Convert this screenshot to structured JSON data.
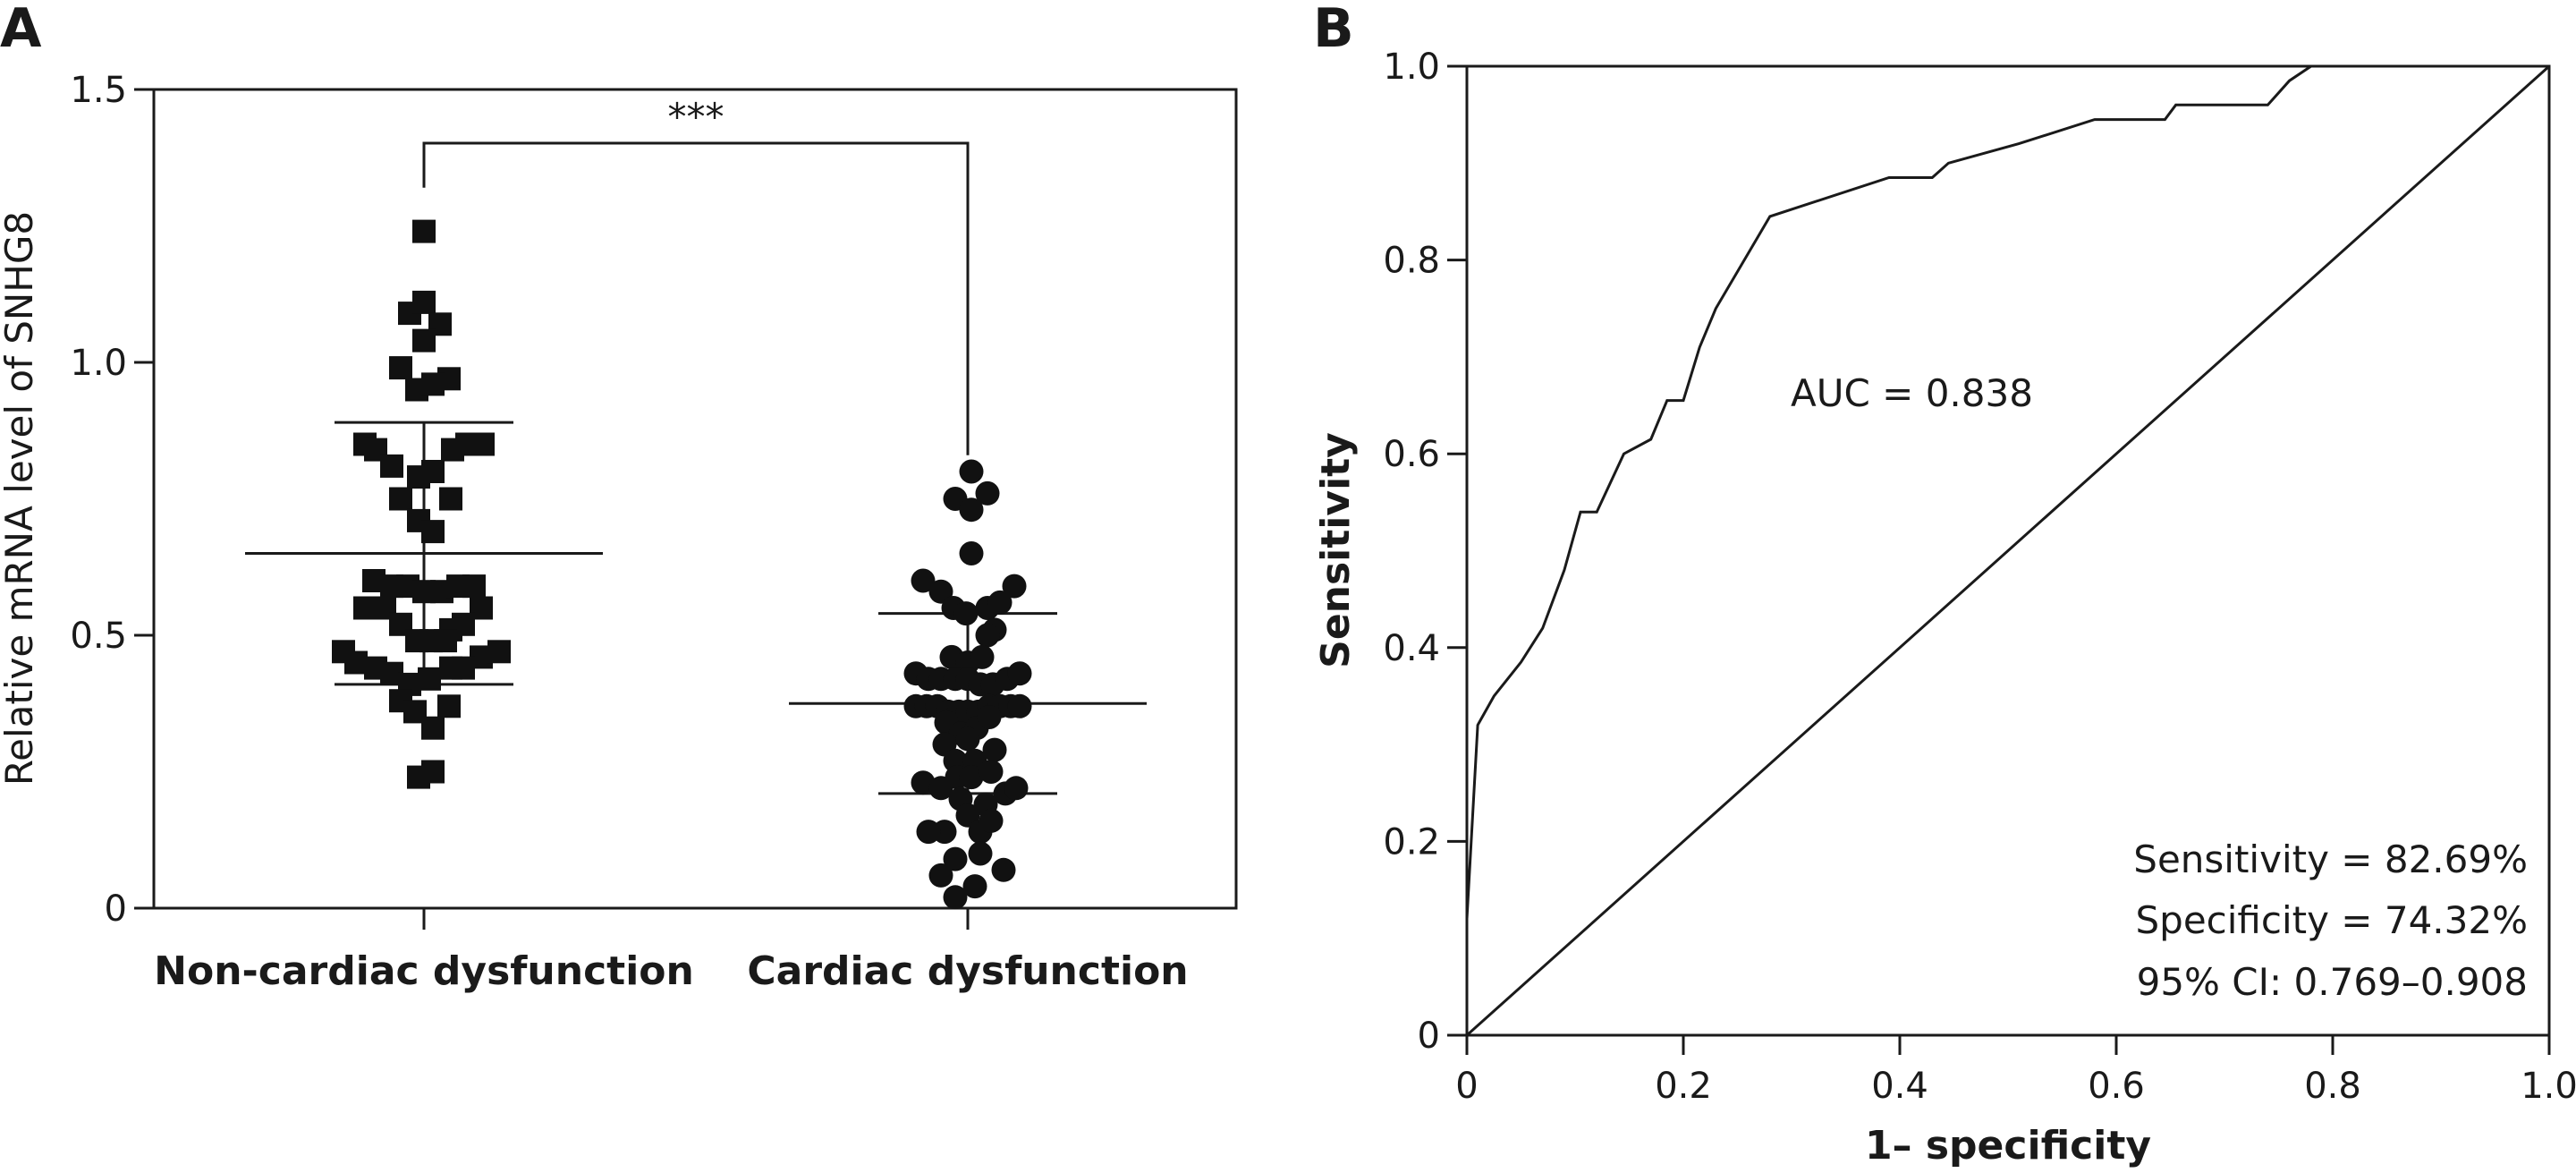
{
  "chart_data": [
    {
      "type": "scatter",
      "panel_label": "A",
      "ylabel": "Relative mRNA level of SNHG8",
      "ylim": [
        0,
        1.5
      ],
      "yticks": [
        0,
        0.5,
        1.0,
        1.5
      ],
      "ytick_labels": [
        "0",
        "0.5",
        "1.0",
        "1.5"
      ],
      "categories": [
        "Non-cardiac dysfunction",
        "Cardiac dysfunction"
      ],
      "significance": "***",
      "series": [
        {
          "marker": "square",
          "mean": 0.65,
          "sd_upper": 0.89,
          "sd_lower": 0.41,
          "points": [
            {
              "dx": 0.0,
              "y": 1.24
            },
            {
              "dx": -0.08,
              "y": 1.09
            },
            {
              "dx": 0.0,
              "y": 1.11
            },
            {
              "dx": 0.09,
              "y": 1.07
            },
            {
              "dx": 0.0,
              "y": 1.04
            },
            {
              "dx": -0.13,
              "y": 0.99
            },
            {
              "dx": 0.14,
              "y": 0.97
            },
            {
              "dx": -0.04,
              "y": 0.95
            },
            {
              "dx": 0.05,
              "y": 0.96
            },
            {
              "dx": -0.33,
              "y": 0.85
            },
            {
              "dx": -0.27,
              "y": 0.84
            },
            {
              "dx": 0.16,
              "y": 0.84
            },
            {
              "dx": 0.24,
              "y": 0.85
            },
            {
              "dx": 0.33,
              "y": 0.85
            },
            {
              "dx": -0.18,
              "y": 0.81
            },
            {
              "dx": -0.03,
              "y": 0.79
            },
            {
              "dx": 0.05,
              "y": 0.8
            },
            {
              "dx": -0.13,
              "y": 0.75
            },
            {
              "dx": 0.15,
              "y": 0.75
            },
            {
              "dx": -0.03,
              "y": 0.71
            },
            {
              "dx": 0.05,
              "y": 0.69
            },
            {
              "dx": -0.28,
              "y": 0.6
            },
            {
              "dx": -0.18,
              "y": 0.59
            },
            {
              "dx": -0.09,
              "y": 0.59
            },
            {
              "dx": 0.0,
              "y": 0.58
            },
            {
              "dx": 0.1,
              "y": 0.58
            },
            {
              "dx": 0.19,
              "y": 0.59
            },
            {
              "dx": 0.28,
              "y": 0.59
            },
            {
              "dx": -0.33,
              "y": 0.55
            },
            {
              "dx": -0.22,
              "y": 0.55
            },
            {
              "dx": 0.32,
              "y": 0.55
            },
            {
              "dx": -0.13,
              "y": 0.52
            },
            {
              "dx": 0.22,
              "y": 0.52
            },
            {
              "dx": 0.15,
              "y": 0.51
            },
            {
              "dx": -0.04,
              "y": 0.49
            },
            {
              "dx": 0.04,
              "y": 0.49
            },
            {
              "dx": 0.12,
              "y": 0.49
            },
            {
              "dx": -0.45,
              "y": 0.47
            },
            {
              "dx": -0.38,
              "y": 0.45
            },
            {
              "dx": 0.32,
              "y": 0.46
            },
            {
              "dx": 0.42,
              "y": 0.47
            },
            {
              "dx": -0.27,
              "y": 0.44
            },
            {
              "dx": -0.18,
              "y": 0.43
            },
            {
              "dx": -0.08,
              "y": 0.41
            },
            {
              "dx": 0.03,
              "y": 0.42
            },
            {
              "dx": 0.15,
              "y": 0.44
            },
            {
              "dx": 0.22,
              "y": 0.44
            },
            {
              "dx": -0.13,
              "y": 0.38
            },
            {
              "dx": -0.05,
              "y": 0.36
            },
            {
              "dx": 0.14,
              "y": 0.37
            },
            {
              "dx": 0.05,
              "y": 0.33
            },
            {
              "dx": -0.03,
              "y": 0.24
            },
            {
              "dx": 0.05,
              "y": 0.25
            }
          ]
        },
        {
          "marker": "circle",
          "mean": 0.375,
          "sd_upper": 0.54,
          "sd_lower": 0.21,
          "points": [
            {
              "dx": 0.02,
              "y": 0.8
            },
            {
              "dx": -0.07,
              "y": 0.75
            },
            {
              "dx": 0.02,
              "y": 0.73
            },
            {
              "dx": 0.11,
              "y": 0.76
            },
            {
              "dx": 0.02,
              "y": 0.65
            },
            {
              "dx": -0.25,
              "y": 0.6
            },
            {
              "dx": -0.15,
              "y": 0.58
            },
            {
              "dx": 0.26,
              "y": 0.59
            },
            {
              "dx": -0.08,
              "y": 0.55
            },
            {
              "dx": -0.01,
              "y": 0.54
            },
            {
              "dx": 0.11,
              "y": 0.55
            },
            {
              "dx": 0.18,
              "y": 0.56
            },
            {
              "dx": 0.15,
              "y": 0.51
            },
            {
              "dx": 0.11,
              "y": 0.5
            },
            {
              "dx": -0.09,
              "y": 0.46
            },
            {
              "dx": 0.0,
              "y": 0.45
            },
            {
              "dx": 0.08,
              "y": 0.46
            },
            {
              "dx": -0.29,
              "y": 0.43
            },
            {
              "dx": -0.22,
              "y": 0.42
            },
            {
              "dx": -0.15,
              "y": 0.42
            },
            {
              "dx": -0.07,
              "y": 0.42
            },
            {
              "dx": 0.0,
              "y": 0.42
            },
            {
              "dx": 0.07,
              "y": 0.41
            },
            {
              "dx": 0.14,
              "y": 0.41
            },
            {
              "dx": 0.22,
              "y": 0.42
            },
            {
              "dx": 0.29,
              "y": 0.43
            },
            {
              "dx": -0.29,
              "y": 0.37
            },
            {
              "dx": -0.23,
              "y": 0.37
            },
            {
              "dx": -0.17,
              "y": 0.37
            },
            {
              "dx": -0.11,
              "y": 0.36
            },
            {
              "dx": -0.05,
              "y": 0.36
            },
            {
              "dx": 0.0,
              "y": 0.36
            },
            {
              "dx": 0.06,
              "y": 0.36
            },
            {
              "dx": 0.12,
              "y": 0.37
            },
            {
              "dx": 0.18,
              "y": 0.37
            },
            {
              "dx": 0.24,
              "y": 0.37
            },
            {
              "dx": 0.29,
              "y": 0.37
            },
            {
              "dx": -0.12,
              "y": 0.34
            },
            {
              "dx": -0.04,
              "y": 0.32
            },
            {
              "dx": 0.05,
              "y": 0.33
            },
            {
              "dx": 0.12,
              "y": 0.35
            },
            {
              "dx": 0.0,
              "y": 0.31
            },
            {
              "dx": -0.13,
              "y": 0.3
            },
            {
              "dx": 0.15,
              "y": 0.29
            },
            {
              "dx": -0.07,
              "y": 0.27
            },
            {
              "dx": 0.04,
              "y": 0.27
            },
            {
              "dx": -0.25,
              "y": 0.23
            },
            {
              "dx": -0.15,
              "y": 0.22
            },
            {
              "dx": -0.06,
              "y": 0.24
            },
            {
              "dx": 0.02,
              "y": 0.24
            },
            {
              "dx": 0.13,
              "y": 0.25
            },
            {
              "dx": 0.21,
              "y": 0.21
            },
            {
              "dx": 0.27,
              "y": 0.22
            },
            {
              "dx": -0.04,
              "y": 0.2
            },
            {
              "dx": 0.1,
              "y": 0.19
            },
            {
              "dx": -0.13,
              "y": 0.14
            },
            {
              "dx": 0.0,
              "y": 0.17
            },
            {
              "dx": 0.07,
              "y": 0.14
            },
            {
              "dx": -0.22,
              "y": 0.14
            },
            {
              "dx": 0.13,
              "y": 0.16
            },
            {
              "dx": -0.07,
              "y": 0.09
            },
            {
              "dx": 0.07,
              "y": 0.1
            },
            {
              "dx": -0.15,
              "y": 0.06
            },
            {
              "dx": 0.2,
              "y": 0.07
            },
            {
              "dx": -0.07,
              "y": 0.02
            },
            {
              "dx": 0.04,
              "y": 0.04
            }
          ]
        }
      ]
    },
    {
      "type": "line",
      "panel_label": "B",
      "xlabel": "1– specificity",
      "ylabel": "Sensitivity",
      "xlim": [
        0,
        1.0
      ],
      "ylim": [
        0,
        1.0
      ],
      "xticks": [
        0,
        0.2,
        0.4,
        0.6,
        0.8,
        1.0
      ],
      "xtick_labels": [
        "0",
        "0.2",
        "0.4",
        "0.6",
        "0.8",
        "1.0"
      ],
      "yticks": [
        0,
        0.2,
        0.4,
        0.6,
        0.8,
        1.0
      ],
      "ytick_labels": [
        "0",
        "0.2",
        "0.4",
        "0.6",
        "0.8",
        "1.0"
      ],
      "roc_curve": [
        [
          0.0,
          0.12
        ],
        [
          0.01,
          0.32
        ],
        [
          0.025,
          0.35
        ],
        [
          0.05,
          0.385
        ],
        [
          0.07,
          0.42
        ],
        [
          0.09,
          0.48
        ],
        [
          0.105,
          0.54
        ],
        [
          0.12,
          0.54
        ],
        [
          0.145,
          0.6
        ],
        [
          0.17,
          0.615
        ],
        [
          0.185,
          0.655
        ],
        [
          0.2,
          0.655
        ],
        [
          0.215,
          0.71
        ],
        [
          0.23,
          0.75
        ],
        [
          0.28,
          0.845
        ],
        [
          0.39,
          0.885
        ],
        [
          0.43,
          0.885
        ],
        [
          0.445,
          0.9
        ],
        [
          0.51,
          0.92
        ],
        [
          0.58,
          0.945
        ],
        [
          0.645,
          0.945
        ],
        [
          0.655,
          0.96
        ],
        [
          0.74,
          0.96
        ],
        [
          0.76,
          0.985
        ],
        [
          0.78,
          1.0
        ],
        [
          1.0,
          1.0
        ]
      ],
      "reference_line": [
        [
          0,
          0
        ],
        [
          1,
          1
        ]
      ],
      "auc_label": "AUC = 0.838",
      "stats": [
        "Sensitivity = 82.69%",
        "Specificity = 74.32%",
        "95% CI: 0.769–0.908"
      ]
    }
  ]
}
